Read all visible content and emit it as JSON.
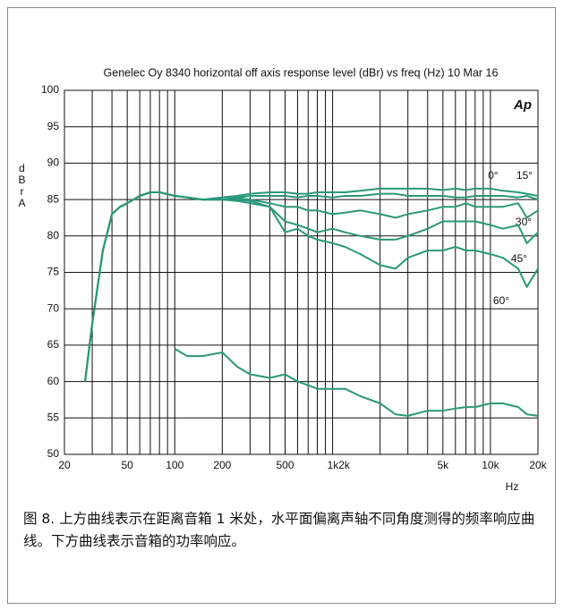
{
  "chart_data": {
    "type": "line",
    "title": "Genelec Oy 8340  horizontal off axis response level (dBr) vs freq (Hz) 10 Mar 16",
    "logo": "Ap",
    "y_label": "dBr A",
    "x_label": "Hz",
    "log_x": true,
    "xlim": [
      20,
      20000
    ],
    "ylim": [
      50,
      100
    ],
    "yticks": [
      50,
      55,
      60,
      65,
      70,
      75,
      80,
      85,
      90,
      95,
      100
    ],
    "xticks": [
      20,
      50,
      100,
      200,
      500,
      {
        "value": 1000,
        "label": "1k2k"
      },
      {
        "value": 5000,
        "label": "5k"
      },
      {
        "value": 10000,
        "label": "10k"
      },
      {
        "value": 20000,
        "label": "20k"
      }
    ],
    "xgrid": [
      20,
      30,
      40,
      50,
      60,
      70,
      80,
      90,
      100,
      200,
      300,
      400,
      500,
      600,
      700,
      800,
      900,
      1000,
      2000,
      3000,
      4000,
      5000,
      6000,
      7000,
      8000,
      9000,
      10000,
      20000
    ],
    "grid": true,
    "x": [
      27,
      30,
      35,
      40,
      45,
      50,
      60,
      70,
      80,
      100,
      120,
      150,
      200,
      250,
      300,
      400,
      500,
      600,
      700,
      800,
      1000,
      1200,
      1500,
      2000,
      2500,
      3000,
      4000,
      5000,
      6000,
      7000,
      8000,
      10000,
      12000,
      15000,
      17000,
      20000
    ],
    "series": [
      {
        "name": "0°",
        "color": "#2a9878",
        "values": [
          60,
          68,
          78,
          83,
          84,
          84.5,
          85.5,
          86,
          86,
          85.5,
          85.3,
          85,
          85,
          85.3,
          85.5,
          85.5,
          85.5,
          85.3,
          85.5,
          85.5,
          85.3,
          85.5,
          85.5,
          85.8,
          85.8,
          85.5,
          85.5,
          85.5,
          85.3,
          85.3,
          85.5,
          85.5,
          85.5,
          85.3,
          85.5,
          85
        ]
      },
      {
        "name": "15°",
        "color": "#2a9878",
        "values": [
          60,
          68,
          78,
          83,
          84,
          84.5,
          85.5,
          86,
          86,
          85.5,
          85.3,
          85,
          85.3,
          85.5,
          85.8,
          86,
          86,
          85.8,
          85.8,
          86,
          86,
          86,
          86.2,
          86.5,
          86.5,
          86.5,
          86.5,
          86.3,
          86.5,
          86.3,
          86.5,
          86.5,
          86.2,
          86,
          85.8,
          85.5
        ]
      },
      {
        "name": "30°",
        "color": "#2a9878",
        "values": [
          60,
          68,
          78,
          83,
          84,
          84.5,
          85.5,
          86,
          86,
          85.5,
          85.3,
          85,
          85,
          85.2,
          85,
          84.5,
          84,
          84,
          83.5,
          83.5,
          83,
          83.2,
          83.5,
          83,
          82.5,
          83,
          83.5,
          84,
          84,
          84.5,
          84,
          84,
          84,
          84.5,
          82.5,
          83.5
        ]
      },
      {
        "name": "45°",
        "color": "#2a9878",
        "values": [
          60,
          68,
          78,
          83,
          84,
          84.5,
          85.5,
          86,
          86,
          85.5,
          85.3,
          85,
          85,
          84.8,
          84.5,
          84,
          82,
          81.5,
          81,
          80.5,
          81,
          80.5,
          80,
          79.5,
          79.5,
          80,
          81,
          82,
          82,
          82,
          82,
          81.5,
          81,
          81.5,
          79,
          80.5
        ]
      },
      {
        "name": "60°",
        "color": "#2a9878",
        "values": [
          60,
          68,
          78,
          83,
          84,
          84.5,
          85.5,
          86,
          86,
          85.5,
          85.3,
          85,
          85,
          85,
          84.8,
          84,
          80.5,
          81,
          80,
          79.5,
          79,
          78.5,
          77.5,
          76,
          75.5,
          77,
          78,
          78,
          78.5,
          78,
          78,
          77.5,
          77,
          75.5,
          73,
          75.5
        ]
      },
      {
        "color": "#2a9878",
        "values": [
          null,
          null,
          null,
          null,
          null,
          null,
          null,
          null,
          null,
          64.5,
          63.5,
          63.5,
          64,
          62,
          61,
          60.5,
          61,
          60,
          59.5,
          59,
          59,
          59,
          58,
          57,
          55.5,
          55.3,
          56,
          56,
          56.3,
          56.5,
          56.5,
          57,
          57,
          56.5,
          55.5,
          55.3
        ]
      }
    ]
  },
  "caption": "图 8. 上方曲线表示在距离音箱 1 米处，水平面偏离声轴不同角度测得的频率响应曲线。下方曲线表示音箱的功率响应。"
}
